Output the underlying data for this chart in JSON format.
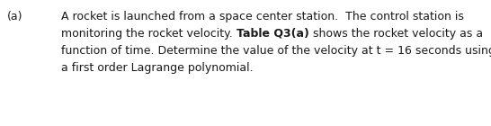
{
  "label_text": "(a)",
  "line1": "A rocket is launched from a space center station.  The control station is",
  "line2_pre": "monitoring the rocket velocity. ",
  "line2_bold": "Table Q3(a)",
  "line2_post": " shows the rocket velocity as a",
  "line3": "function of time. Determine the value of the velocity at t = 16 seconds using",
  "line4": "a first order Lagrange polynomial.",
  "background_color": "#ffffff",
  "text_color": "#1a1a1a",
  "font_size": 9.0,
  "font_family": "DejaVu Sans"
}
